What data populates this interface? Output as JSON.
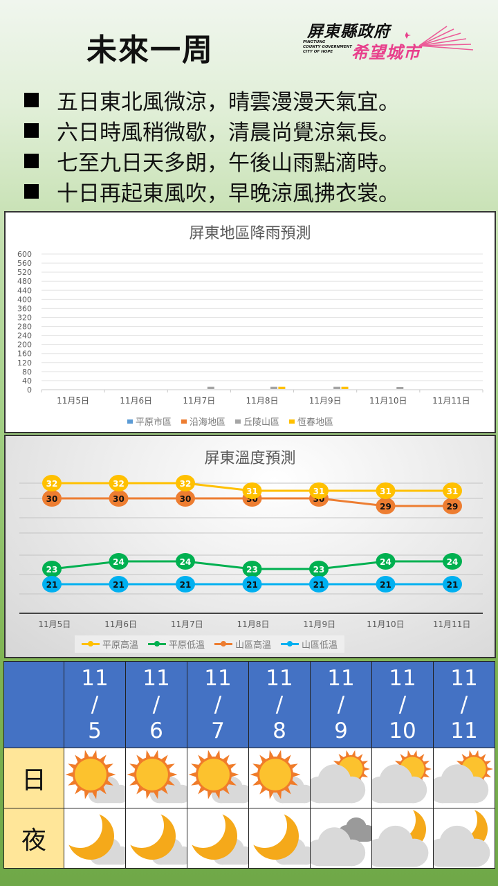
{
  "header": {
    "title": "未來一周",
    "logo": {
      "org": "屏東縣政府",
      "english": [
        "PINGTUNG",
        "COUNTY GOVERNMENT",
        "CITY OF HOPE"
      ],
      "slogan": "希望城市"
    }
  },
  "bullets": [
    "五日東北風微涼，晴雲漫漫天氣宜。",
    "六日時風稍微歇，清晨尚覺涼氣長。",
    "七至九日天多朗，午後山雨點滴時。",
    "十日再起東風吹，早晚涼風拂衣裳。"
  ],
  "chart_data": [
    {
      "type": "bar",
      "title": "屏東地區降雨預測",
      "categories": [
        "11月5日",
        "11月6日",
        "11月7日",
        "11月8日",
        "11月9日",
        "11月10日",
        "11月11日"
      ],
      "series": [
        {
          "name": "平原市區",
          "color": "#5b9bd5",
          "values": [
            0,
            0,
            0,
            0,
            0,
            0,
            0
          ]
        },
        {
          "name": "沿海地區",
          "color": "#ed7d31",
          "values": [
            0,
            0,
            0,
            0,
            0,
            0,
            0
          ]
        },
        {
          "name": "丘陵山區",
          "color": "#a5a5a5",
          "values": [
            0,
            0,
            10,
            10,
            10,
            5,
            0
          ]
        },
        {
          "name": "恆春地區",
          "color": "#ffc000",
          "values": [
            0,
            0,
            0,
            10,
            10,
            0,
            0
          ]
        }
      ],
      "yticks": [
        0,
        40,
        80,
        120,
        160,
        200,
        240,
        280,
        320,
        360,
        400,
        440,
        480,
        520,
        560,
        600
      ],
      "ylim": [
        0,
        600
      ],
      "grid": true,
      "legend_position": "bottom"
    },
    {
      "type": "line",
      "title": "屏東溫度預測",
      "categories": [
        "11月5日",
        "11月6日",
        "11月7日",
        "11月8日",
        "11月9日",
        "11月10日",
        "11月11日"
      ],
      "series": [
        {
          "name": "平原高溫",
          "color": "#ffc000",
          "values": [
            32,
            32,
            32,
            31,
            31,
            31,
            31
          ]
        },
        {
          "name": "平原低溫",
          "color": "#00b050",
          "values": [
            23,
            24,
            24,
            23,
            23,
            24,
            24
          ]
        },
        {
          "name": "山區高溫",
          "color": "#ed7d31",
          "values": [
            30,
            30,
            30,
            30,
            30,
            29,
            29
          ]
        },
        {
          "name": "山區低溫",
          "color": "#00b0f0",
          "values": [
            21,
            21,
            21,
            21,
            21,
            21,
            21
          ]
        }
      ],
      "grid": true,
      "data_labels": true,
      "legend_position": "bottom"
    }
  ],
  "forecast_table": {
    "dates": [
      {
        "month": "11",
        "sep": "/",
        "day": "5"
      },
      {
        "month": "11",
        "sep": "/",
        "day": "6"
      },
      {
        "month": "11",
        "sep": "/",
        "day": "7"
      },
      {
        "month": "11",
        "sep": "/",
        "day": "8"
      },
      {
        "month": "11",
        "sep": "/",
        "day": "9"
      },
      {
        "month": "11",
        "sep": "/",
        "day": "10"
      },
      {
        "month": "11",
        "sep": "/",
        "day": "11"
      }
    ],
    "day_label": "日",
    "night_label": "夜",
    "day_icons": [
      "sunny-icon",
      "sunny-icon",
      "sunny-icon",
      "sunny-icon",
      "partly-cloudy-icon",
      "partly-cloudy-icon",
      "partly-cloudy-icon"
    ],
    "night_icons": [
      "clear-night-icon",
      "clear-night-icon",
      "clear-night-icon",
      "clear-night-icon",
      "cloudy-icon",
      "cloudy-night-icon",
      "cloudy-night-icon"
    ]
  }
}
